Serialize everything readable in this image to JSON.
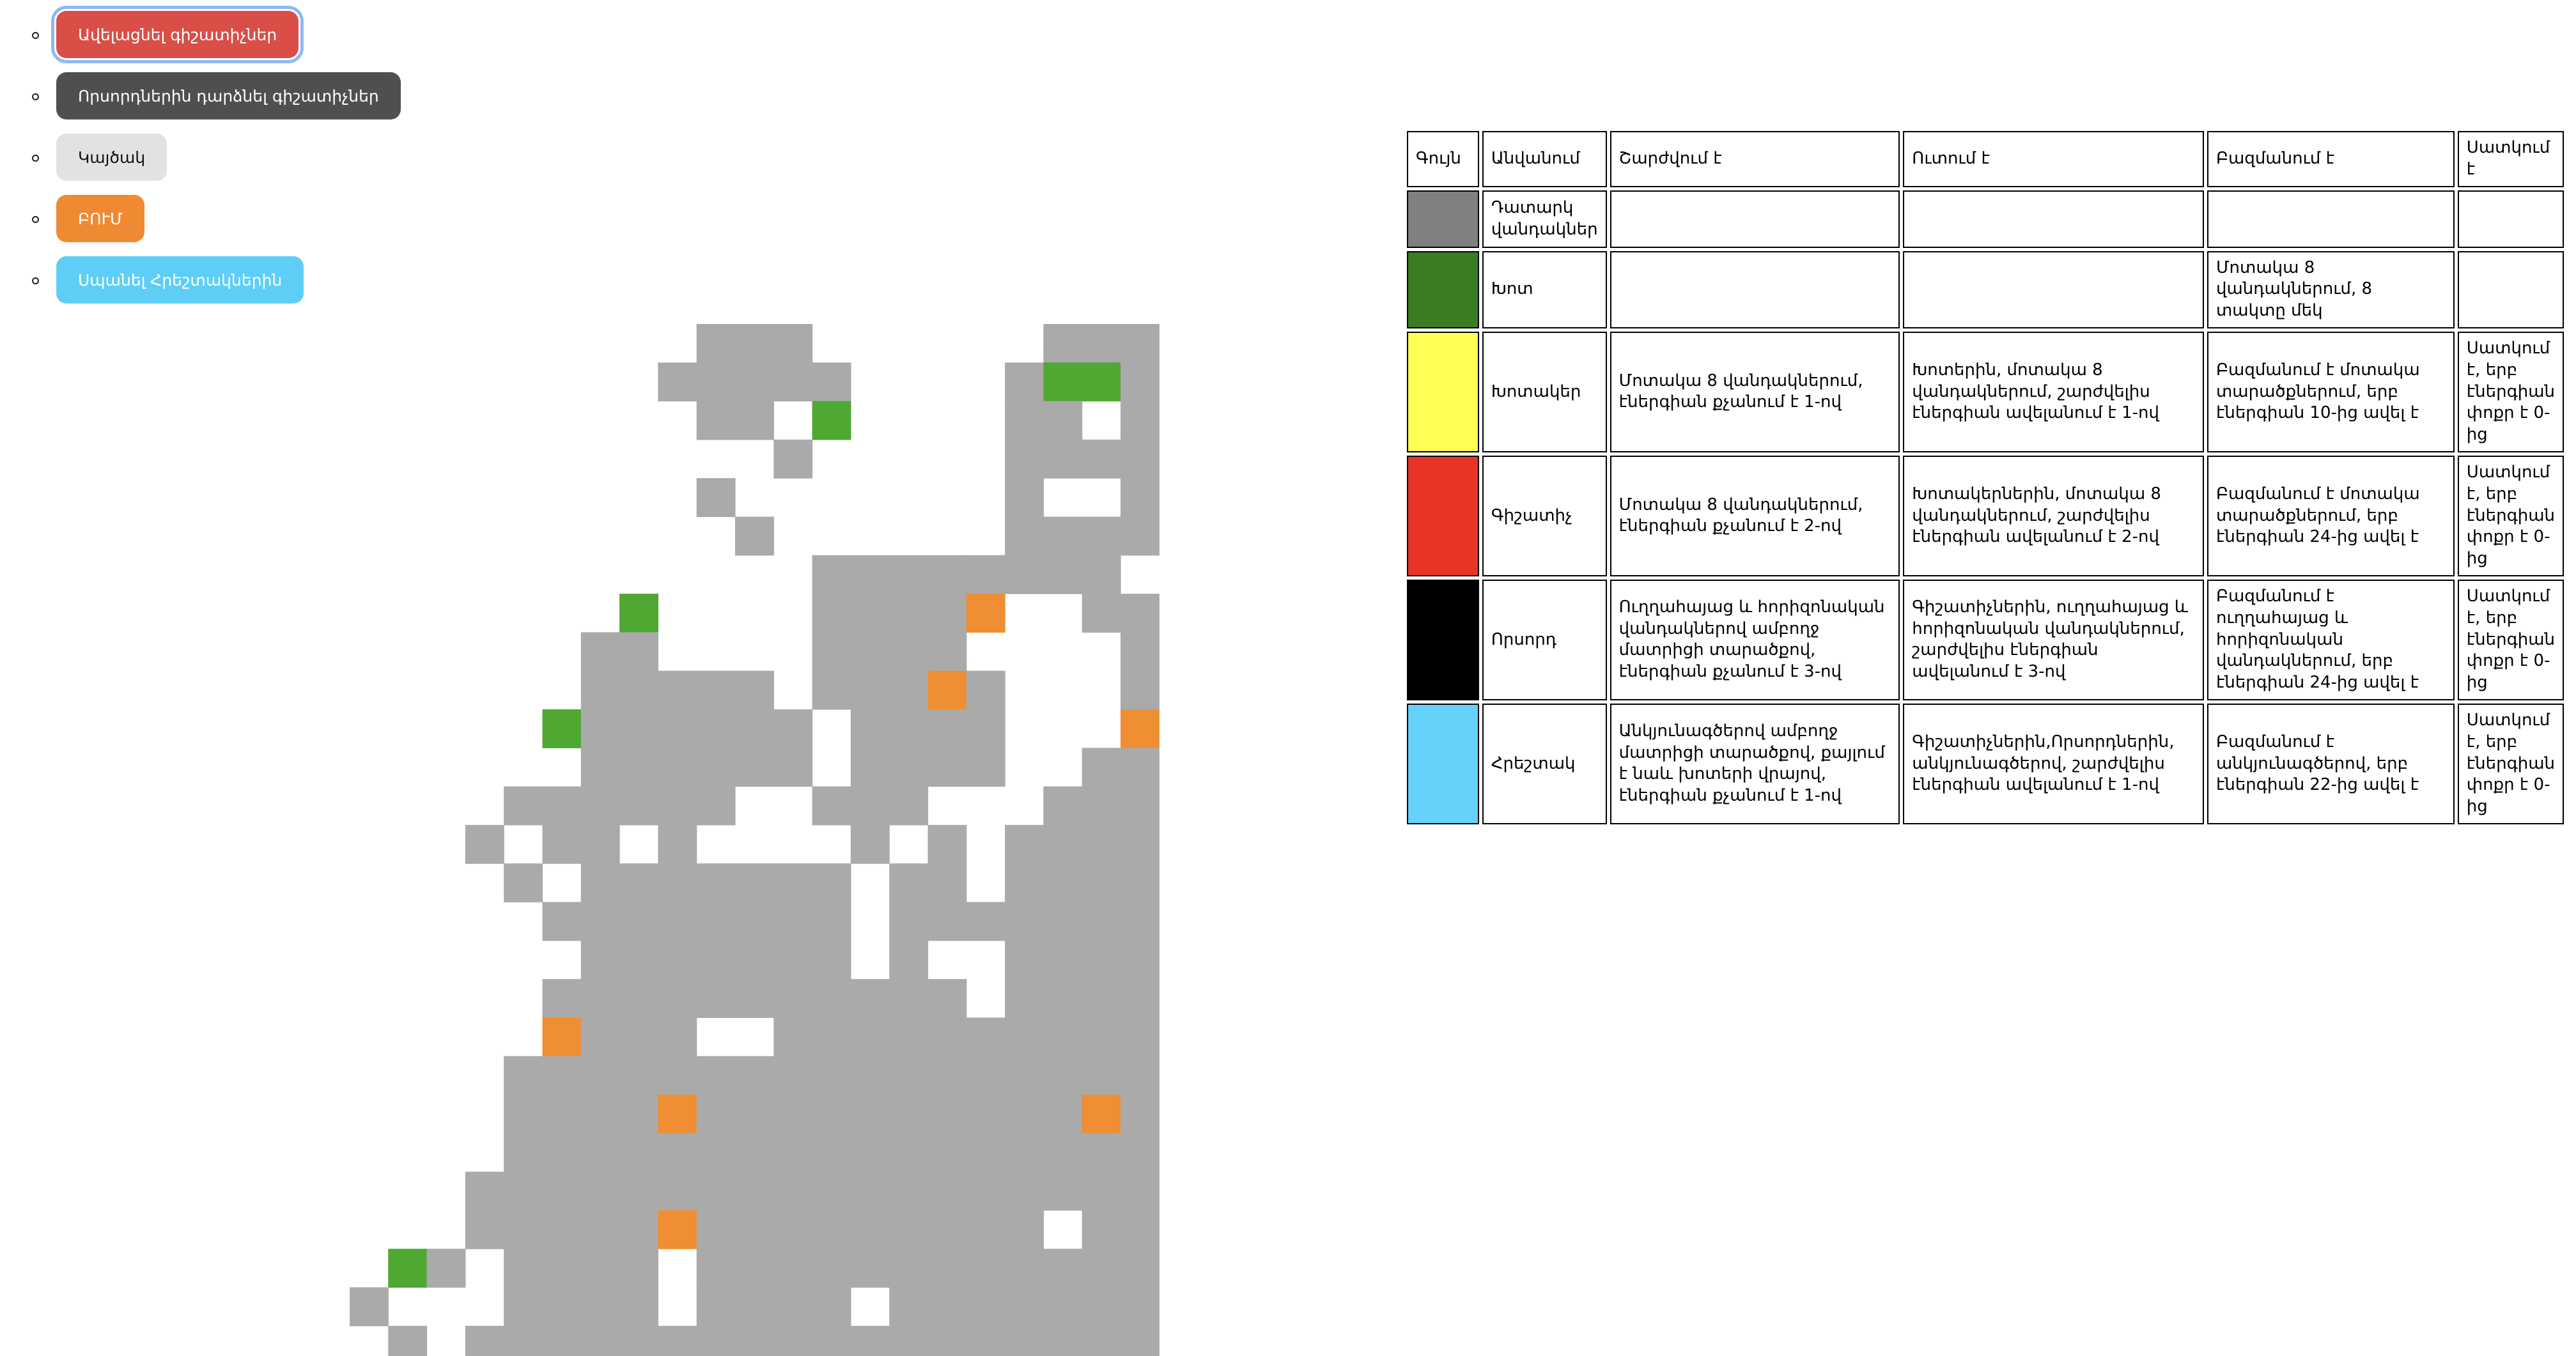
{
  "buttons": [
    {
      "label": "Ավելացնել գիշատիչներ",
      "bg": "#d94f48",
      "fg": "#ffffff",
      "focused": true
    },
    {
      "label": "Որսորդներին դարձնել գիշատիչներ",
      "bg": "#4f4f4f",
      "fg": "#ffffff",
      "focused": false
    },
    {
      "label": "Կայծակ",
      "bg": "#e2e2e2",
      "fg": "#111111",
      "focused": false
    },
    {
      "label": "ԲՈՒՄ",
      "bg": "#ef8a33",
      "fg": "#ffffff",
      "focused": false
    },
    {
      "label": "Սպանել Հրեշտակներին",
      "bg": "#5fcef7",
      "fg": "#ffffff",
      "focused": false
    }
  ],
  "grid_colors": {
    "empty": "#aaaaaa",
    "grass": "#4ea832",
    "bomb": "#ef8e33",
    "blank": "#ffffff"
  },
  "legend": {
    "headers": [
      "Գույն",
      "Անվանում",
      "Շարժվում է",
      "Ուտում է",
      "Բազմանում է",
      "Սատկում է"
    ],
    "rows": [
      {
        "color": "#808080",
        "name": "Դատարկ վանդակներ",
        "moves": "",
        "eats": "",
        "multiplies": "",
        "dies": ""
      },
      {
        "color": "#3a7d22",
        "name": "Խոտ",
        "moves": "",
        "eats": "",
        "multiplies": "Մոտակա 8 վանդակներում, 8 տակտը մեկ",
        "dies": ""
      },
      {
        "color": "#ffff55",
        "name": "Խոտակեր",
        "moves": "Մոտակա 8 վանդակներում, էներգիան քչանում է 1-ով",
        "eats": "Խոտերին, մոտակա 8 վանդակներում, շարժվելիս էներգիան ավելանում է 1-ով",
        "multiplies": "Բազմանում է մոտակա տարածքներում, երբ էներգիան 10-ից ավել է",
        "dies": "Սատկում է, երբ էներգիան փոքր է 0-ից"
      },
      {
        "color": "#e83325",
        "name": "Գիշատիչ",
        "moves": "Մոտակա 8 վանդակներում, էներգիան քչանում է 2-ով",
        "eats": "Խոտակերներին, մոտակա 8 վանդակներում, շարժվելիս էներգիան ավելանում է 2-ով",
        "multiplies": "Բազմանում է մոտակա տարածքներում, երբ էներգիան 24-ից ավել է",
        "dies": "Սատկում է, երբ էներգիան փոքր է 0-ից"
      },
      {
        "color": "#000000",
        "name": "Որսորդ",
        "moves": "Ուղղահայաց և հորիզոնական վանդակներով ամբողջ մատրիցի տարածքով, էներգիան քչանում է 3-ով",
        "eats": "Գիշատիչներին, ուղղահայաց և հորիզոնական վանդակներում, շարժվելիս էներգիան ավելանում է 3-ով",
        "multiplies": "Բազմանում է ուղղահայաց և հորիզոնական վանդակներում, երբ էներգիան 24-ից ավել է",
        "dies": "Սատկում է, երբ էներգիան փոքր է 0-ից"
      },
      {
        "color": "#66d1fa",
        "name": "Հրեշտակ",
        "moves": "Անկյունագծերով ամբողջ մատրիցի տարածքով, քայլում է նաև խոտերի վրայով, էներգիան քչանում է 1-ով",
        "eats": "Գիշատիչներին,Որսորդներին, անկյունագծերով, շարժվելիս էներգիան ավելանում է 1-ով",
        "multiplies": "Բազմանում է անկյունագծերով, երբ էներգիան 22-ից ավել է",
        "dies": "Սատկում է, երբ էներգիան փոքր է 0-ից"
      }
    ]
  }
}
